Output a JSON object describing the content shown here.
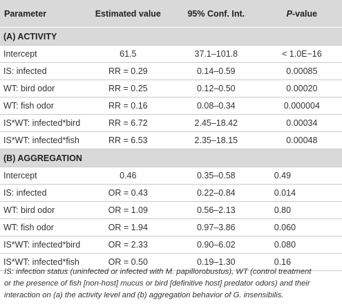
{
  "header": {
    "parameter": "Parameter",
    "estimate": "Estimated value",
    "ci": "95% Conf. Int.",
    "p_italic": "P",
    "p_suffix": "-value"
  },
  "sections": [
    {
      "title": "(A) ACTIVITY",
      "rows": [
        {
          "param": "Intercept",
          "estimate": "61.5",
          "ci": "37.1–101.8",
          "p": "< 1.0E−16"
        },
        {
          "param": "IS: infected",
          "estimate": "RR = 0.29",
          "ci": "0.14–0.59",
          "p": "0.00085"
        },
        {
          "param": "WT: bird odor",
          "estimate": "RR = 0.25",
          "ci": "0.12–0.50",
          "p": "0.00020"
        },
        {
          "param": "WT: fish odor",
          "estimate": "RR = 0.16",
          "ci": "0.08–0.34",
          "p": "0.000004"
        },
        {
          "param": "IS*WT: infected*bird",
          "estimate": "RR = 6.72",
          "ci": "2.45–18.42",
          "p": "0.00034"
        },
        {
          "param": "IS*WT: infected*fish",
          "estimate": "RR = 6.53",
          "ci": "2.35–18.15",
          "p": "0.00048"
        }
      ]
    },
    {
      "title": "(B) AGGREGATION",
      "rows": [
        {
          "param": "Intercept",
          "estimate": "0.46",
          "ci": "0.35–0.58",
          "p": "0.49"
        },
        {
          "param": "IS: infected",
          "estimate": "OR = 0.43",
          "ci": "0.22–0.84",
          "p": "0.014"
        },
        {
          "param": "WT: bird odor",
          "estimate": "OR = 1.09",
          "ci": "0.56–2.13",
          "p": "0.80"
        },
        {
          "param": "WT: fish odor",
          "estimate": "OR = 1.94",
          "ci": "0.97–3.86",
          "p": "0.060"
        },
        {
          "param": "IS*WT: infected*bird",
          "estimate": "OR = 2.33",
          "ci": "0.90–6.02",
          "p": "0.080"
        },
        {
          "param": "IS*WT: infected*fish",
          "estimate": "OR = 0.50",
          "ci": "0.19–1.30",
          "p": "0.16"
        }
      ]
    }
  ],
  "caption": [
    "IS: infection status (uninfected or infected with M. papillorobustus), WT (control treatment",
    "or the presence of fish [non-host] mucus or bird [definitive host] predator odors) and their",
    "interaction on (a) the activity level and (b) aggregation behavior of G. insensibilis."
  ]
}
